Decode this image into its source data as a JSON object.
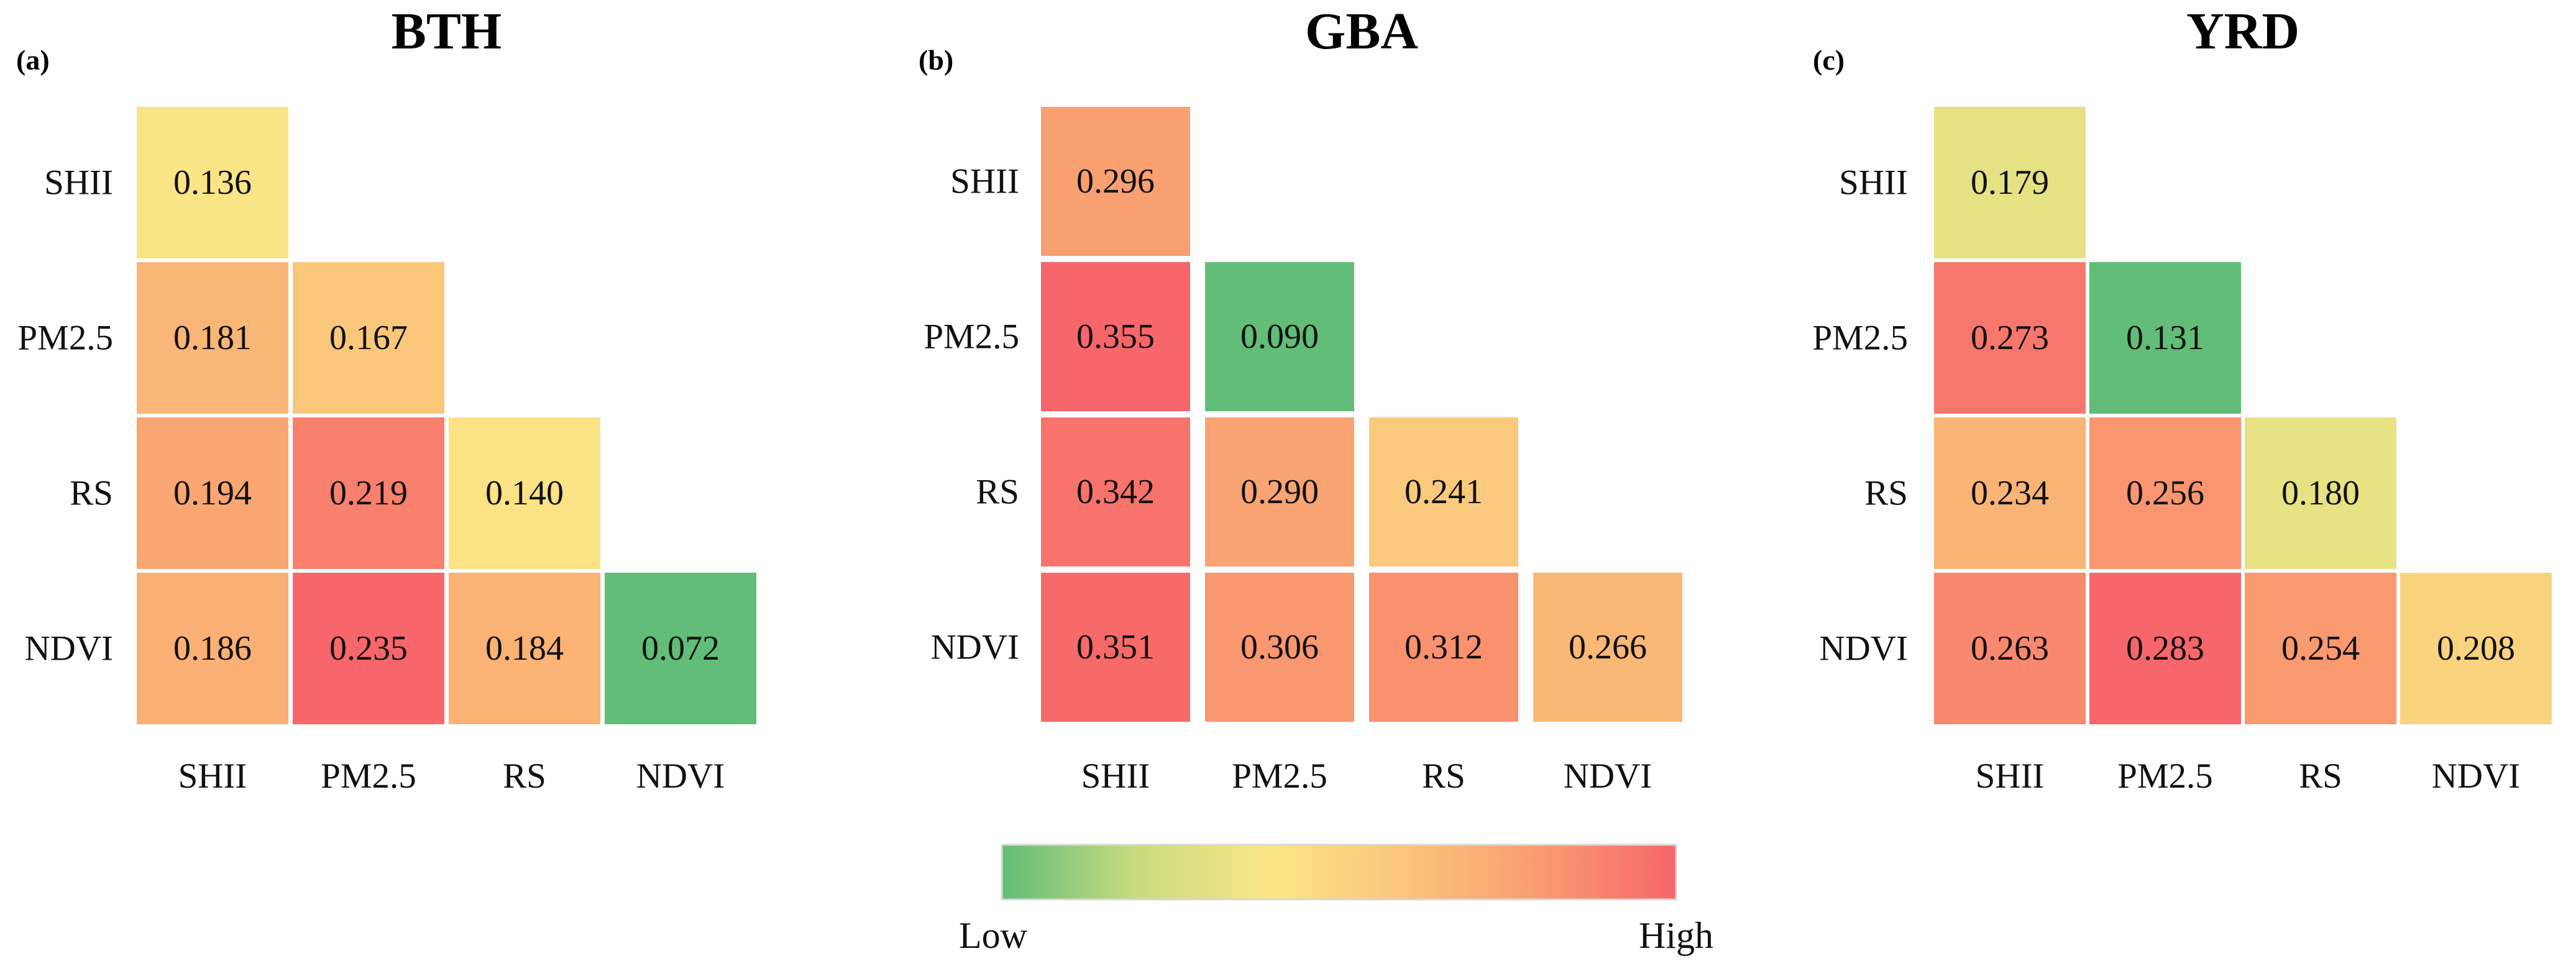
{
  "chart_data": [
    {
      "type": "heatmap",
      "panel": "(a)",
      "title": "BTH",
      "rows": [
        "SHII",
        "PM2.5",
        "RS",
        "NDVI"
      ],
      "columns": [
        "SHII",
        "PM2.5",
        "RS",
        "NDVI"
      ],
      "values": [
        [
          0.136
        ],
        [
          0.181,
          0.167
        ],
        [
          0.194,
          0.219,
          0.14
        ],
        [
          0.186,
          0.235,
          0.184,
          0.072
        ]
      ],
      "labels": [
        [
          "0.136"
        ],
        [
          "0.181",
          "0.167"
        ],
        [
          "0.194",
          "0.219",
          "0.140"
        ],
        [
          "0.186",
          "0.235",
          "0.184",
          "0.072"
        ]
      ]
    },
    {
      "type": "heatmap",
      "panel": "(b)",
      "title": "GBA",
      "rows": [
        "SHII",
        "PM2.5",
        "RS",
        "NDVI"
      ],
      "columns": [
        "SHII",
        "PM2.5",
        "RS",
        "NDVI"
      ],
      "values": [
        [
          0.296
        ],
        [
          0.355,
          0.09
        ],
        [
          0.342,
          0.29,
          0.241
        ],
        [
          0.351,
          0.306,
          0.312,
          0.266
        ]
      ],
      "labels": [
        [
          "0.296"
        ],
        [
          "0.355",
          "0.090"
        ],
        [
          "0.342",
          "0.290",
          "0.241"
        ],
        [
          "0.351",
          "0.306",
          "0.312",
          "0.266"
        ]
      ]
    },
    {
      "type": "heatmap",
      "panel": "(c)",
      "title": "YRD",
      "rows": [
        "SHII",
        "PM2.5",
        "RS",
        "NDVI"
      ],
      "columns": [
        "SHII",
        "PM2.5",
        "RS",
        "NDVI"
      ],
      "values": [
        [
          0.179
        ],
        [
          0.273,
          0.131
        ],
        [
          0.234,
          0.256,
          0.18
        ],
        [
          0.263,
          0.283,
          0.254,
          0.208
        ]
      ],
      "labels": [
        [
          "0.179"
        ],
        [
          "0.273",
          "0.131"
        ],
        [
          "0.234",
          "0.256",
          "0.180"
        ],
        [
          "0.263",
          "0.283",
          "0.254",
          "0.208"
        ]
      ]
    }
  ],
  "legend": {
    "low_label": "Low",
    "high_label": "High",
    "colors": [
      "#61bd77",
      "#c8dc7e",
      "#fbe586",
      "#fac479",
      "#f99b70",
      "#f7666a"
    ]
  }
}
